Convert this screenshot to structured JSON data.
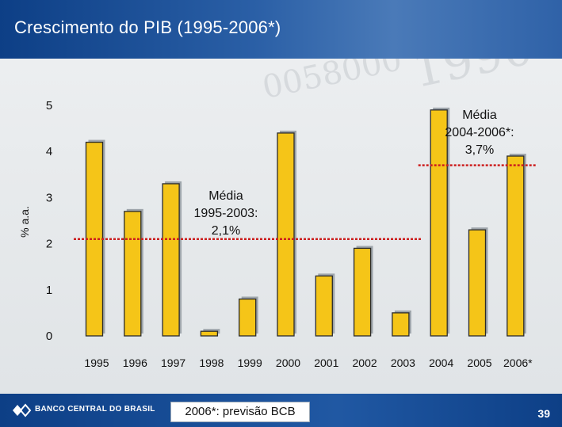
{
  "title": "Crescimento do PIB (1995-2006*)",
  "footer": {
    "brand": "BANCO CENTRAL DO BRASIL",
    "note": "2006*: previsão BCB",
    "page": "39"
  },
  "colors": {
    "bar": "#f5c518",
    "bar_edge": "#2b2b2b",
    "shadow": "#9ea5ab",
    "mean_line": "#cc1f1f",
    "banner": "#1b4f96"
  },
  "chart_data": {
    "type": "bar",
    "title": "",
    "xlabel": "",
    "ylabel": "% a.a.",
    "categories": [
      "1995",
      "1996",
      "1997",
      "1998",
      "1999",
      "2000",
      "2001",
      "2002",
      "2003",
      "2004",
      "2005",
      "2006*"
    ],
    "values": [
      4.2,
      2.7,
      3.3,
      0.1,
      0.8,
      4.4,
      1.3,
      1.9,
      0.5,
      4.9,
      2.3,
      3.9
    ],
    "yticks": [
      0,
      1,
      2,
      3,
      4,
      5
    ],
    "ylim": [
      0,
      5.5
    ],
    "grid": false,
    "reference_lines": [
      {
        "label": "Média 1995-2003: 2,1%",
        "value": 2.1,
        "from": "1995",
        "to": "2003"
      },
      {
        "label": "Média 2004-2006*: 3,7%",
        "value": 3.7,
        "from": "2004",
        "to": "2006*"
      }
    ]
  }
}
